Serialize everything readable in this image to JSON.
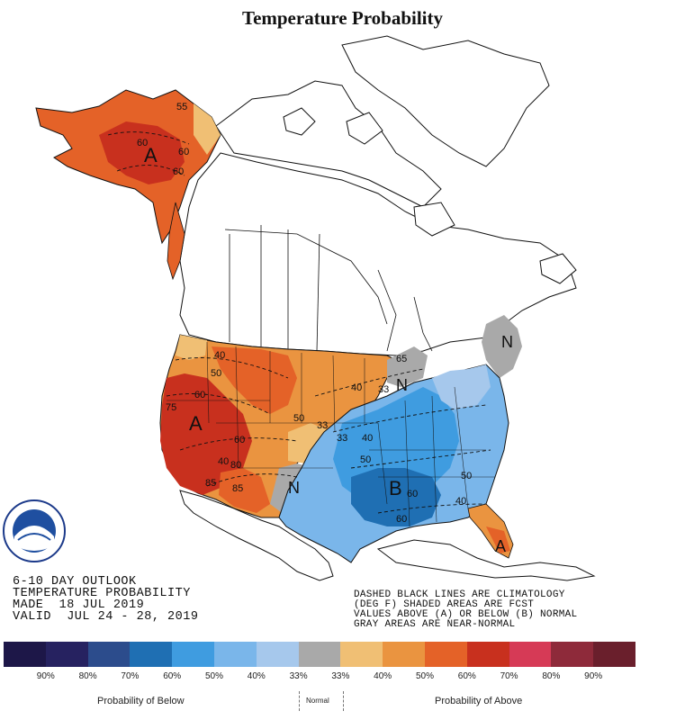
{
  "title": "Temperature Probability",
  "outlook": {
    "line1": "6-10 DAY OUTLOOK",
    "line2": "TEMPERATURE PROBABILITY",
    "line3": "MADE  18 JUL 2019",
    "line4": "VALID  JUL 24 - 28, 2019"
  },
  "notes": {
    "line1": "DASHED BLACK LINES ARE CLIMATOLOGY",
    "line2": "(DEG F) SHADED AREAS ARE FCST",
    "line3": "VALUES ABOVE (A) OR BELOW (B) NORMAL",
    "line4": "GRAY AREAS ARE NEAR-NORMAL"
  },
  "map_labels": {
    "alaska_a": "A",
    "west_a": "A",
    "southeast_b": "B",
    "florida_a": "A",
    "great_lakes_n": "N",
    "new_england_n": "N",
    "texas_n": "N",
    "ak_55": "55",
    "ak_60a": "60",
    "ak_60b": "60",
    "ak_60c": "60",
    "w_40a": "40",
    "w_50a": "50",
    "w_60a": "60",
    "w_75": "75",
    "w_60b": "60",
    "w_80": "80",
    "w_85a": "85",
    "w_85b": "85",
    "w_40b": "40",
    "c_50": "50",
    "c_40": "40",
    "c_33a": "33",
    "c_33b": "33",
    "c_33c": "33",
    "e_40a": "40",
    "e_50a": "50",
    "e_60": "60",
    "e_50b": "50",
    "e_40b": "40",
    "e_60b": "60",
    "e_65": "65"
  },
  "legend": {
    "colors": [
      "#1d1748",
      "#262260",
      "#2c4c8c",
      "#1f6fb3",
      "#3f9ce0",
      "#7ab6ea",
      "#a6c8ec",
      "#a9a9a9",
      "#f0bf74",
      "#ea9440",
      "#e46228",
      "#c8301e",
      "#d63a56",
      "#8e2a3a",
      "#6a1f2c"
    ],
    "ticks": [
      "90%",
      "80%",
      "70%",
      "60%",
      "50%",
      "40%",
      "33%",
      "33%",
      "40%",
      "50%",
      "60%",
      "70%",
      "80%",
      "90%"
    ],
    "below_label": "Probability of Below",
    "normal_label": "Normal",
    "above_label": "Probability of Above"
  }
}
